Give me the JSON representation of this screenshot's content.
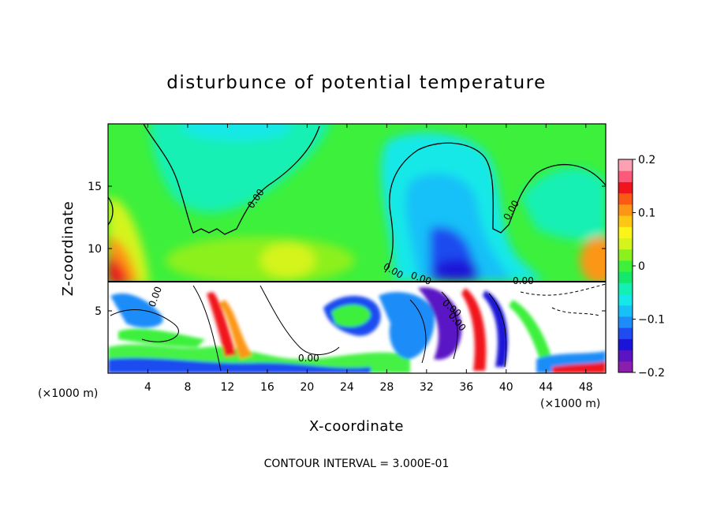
{
  "chart_data": {
    "type": "heatmap",
    "title": "disturbunce of potential temperature",
    "xlabel": "X-coordinate",
    "ylabel": "Z-coordinate",
    "x_unit": "(×1000 m)",
    "x_unit_right": "(×1000 m)",
    "xlim": [
      0,
      50
    ],
    "ylim": [
      0,
      20
    ],
    "x_ticks": [
      4,
      8,
      12,
      16,
      20,
      24,
      28,
      32,
      36,
      40,
      44,
      48
    ],
    "y_ticks": [
      5,
      10,
      15
    ],
    "colorbar": {
      "range": [
        -0.2,
        0.2
      ],
      "tick_values": [
        0.2,
        0.1,
        0,
        -0.1,
        -0.2
      ],
      "tick_labels": [
        "0.2",
        "0.1",
        "0",
        "−0.1",
        "−0.2"
      ],
      "colors": [
        "#8a1fae",
        "#5a14c4",
        "#1a14d8",
        "#1e4cf0",
        "#1e8cf8",
        "#18c0f8",
        "#14e8e8",
        "#14f0b4",
        "#14e86c",
        "#3cf03c",
        "#8cf01c",
        "#d4f41c",
        "#fcf418",
        "#fcc814",
        "#fc9614",
        "#fc5a14",
        "#f0141c",
        "#fc5a78",
        "#fca0b4"
      ]
    },
    "contour_labels": [
      "0.00",
      "0.00",
      "0.00",
      "0.00",
      "0.00",
      "0.00",
      "0.00",
      "0.00",
      "0.00"
    ],
    "footer_note": "CONTOUR INTERVAL = 3.000E-01"
  }
}
